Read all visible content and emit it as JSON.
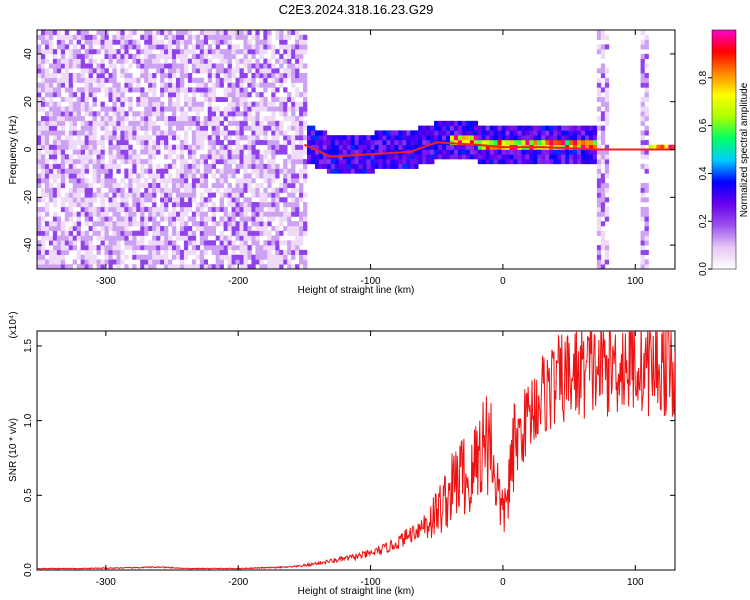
{
  "figure": {
    "title": "C2E3.2024.318.16.23.G29"
  },
  "chart_data": [
    {
      "type": "heatmap",
      "title": "",
      "xlabel": "Height of straight line (km)",
      "ylabel": "Frequency (Hz)",
      "xlim": [
        -352,
        130
      ],
      "ylim": [
        -50,
        50
      ],
      "x_ticks": [
        -300,
        -200,
        -100,
        0,
        100
      ],
      "x_tick_labels": [
        "-300",
        "-200",
        "-100",
        "0",
        "100"
      ],
      "y_ticks": [
        -40,
        -20,
        0,
        20,
        40
      ],
      "y_tick_labels": [
        "-40",
        "-20",
        "0",
        "20",
        "40"
      ],
      "colorbar": {
        "label": "Normalized spectral amplitude",
        "range": [
          0,
          1
        ],
        "ticks": [
          0.0,
          0.2,
          0.4,
          0.6,
          0.8
        ],
        "tick_labels": [
          "0.0",
          "0.2",
          "0.4",
          "0.6",
          "0.8"
        ],
        "colors": [
          "#ffffff",
          "#e6c8f5",
          "#9a52ee",
          "#6a00ee",
          "#0000ff",
          "#00ccff",
          "#00ff66",
          "#aaff00",
          "#ffff00",
          "#ff8800",
          "#ff0000",
          "#ff00cc"
        ]
      },
      "regions": [
        {
          "x": [
            -352,
            -150
          ],
          "freq": [
            -50,
            50
          ],
          "amplitude": 0.12
        },
        {
          "x": [
            -150,
            70
          ],
          "freq": [
            -8,
            8
          ],
          "amplitude": 0.35
        },
        {
          "x": [
            -40,
            70
          ],
          "freq": [
            -2,
            2
          ],
          "amplitude": 0.9
        },
        {
          "x": [
            70,
            80
          ],
          "freq": [
            -50,
            50
          ],
          "amplitude": 0.12
        },
        {
          "x": [
            103,
            110
          ],
          "freq": [
            -50,
            50
          ],
          "amplitude": 0.12
        },
        {
          "x": [
            110,
            130
          ],
          "freq": [
            -1,
            1
          ],
          "amplitude": 0.9
        }
      ],
      "ridge": [
        {
          "x": -150,
          "freq": 2
        },
        {
          "x": -130,
          "freq": -3
        },
        {
          "x": -100,
          "freq": -2
        },
        {
          "x": -70,
          "freq": -1
        },
        {
          "x": -50,
          "freq": 3
        },
        {
          "x": -20,
          "freq": 2
        },
        {
          "x": 0,
          "freq": 1
        },
        {
          "x": 30,
          "freq": 1
        },
        {
          "x": 70,
          "freq": 0
        },
        {
          "x": 110,
          "freq": 0
        },
        {
          "x": 130,
          "freq": 0
        }
      ],
      "grid": false
    },
    {
      "type": "line",
      "title": "",
      "xlabel": "Height of straight line (km)",
      "ylabel": "SNR (10 * v/v)",
      "y_multiplier": "(x10⁴)",
      "xlim": [
        -352,
        130
      ],
      "ylim": [
        0,
        1.6
      ],
      "x_ticks": [
        -300,
        -200,
        -100,
        0,
        100
      ],
      "x_tick_labels": [
        "-300",
        "-200",
        "-100",
        "0",
        "100"
      ],
      "y_ticks": [
        0.0,
        0.5,
        1.0,
        1.5
      ],
      "y_tick_labels": [
        "0.0",
        "0.5",
        "1.0",
        "1.5"
      ],
      "line_color": "#ee1111",
      "grid": false,
      "series": [
        {
          "name": "",
          "x": [
            -352,
            -320,
            -280,
            -260,
            -240,
            -200,
            -160,
            -150,
            -130,
            -110,
            -100,
            -90,
            -80,
            -70,
            -60,
            -50,
            -45,
            -40,
            -35,
            -30,
            -25,
            -20,
            -15,
            -10,
            -5,
            0,
            5,
            10,
            20,
            30,
            40,
            50,
            60,
            70,
            80,
            90,
            100,
            110,
            120,
            130
          ],
          "y": [
            0.01,
            0.01,
            0.015,
            0.02,
            0.01,
            0.01,
            0.02,
            0.03,
            0.06,
            0.09,
            0.11,
            0.14,
            0.18,
            0.24,
            0.3,
            0.38,
            0.45,
            0.52,
            0.6,
            0.65,
            0.55,
            0.75,
            0.85,
            0.9,
            0.6,
            0.35,
            0.6,
            0.85,
            1.05,
            1.18,
            1.25,
            1.3,
            1.33,
            1.35,
            1.37,
            1.38,
            1.38,
            1.37,
            1.36,
            1.36
          ]
        }
      ]
    }
  ]
}
